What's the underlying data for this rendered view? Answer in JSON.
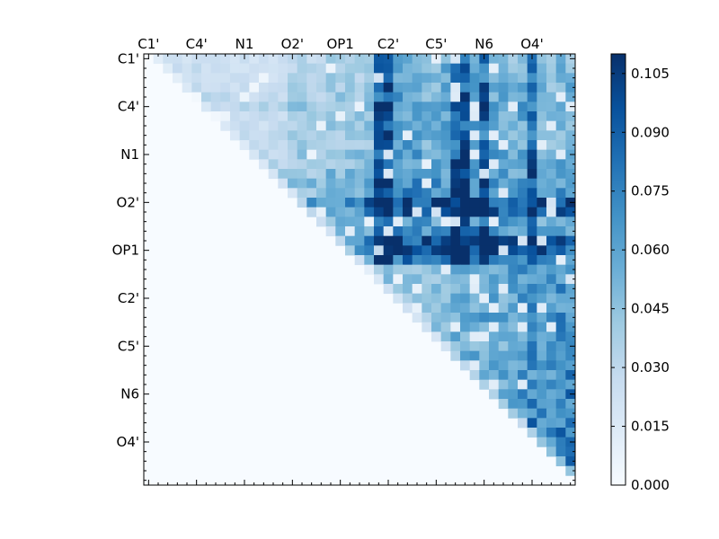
{
  "chart_data": {
    "type": "heatmap",
    "title": "",
    "xlabel": "",
    "ylabel": "",
    "colormap": "Blues",
    "color_min": "#f7fbff",
    "color_max": "#08306b",
    "n": 45,
    "x_tick_labels": [
      "C1'",
      "C4'",
      "N1",
      "O2'",
      "OP1",
      "C2'",
      "C5'",
      "N6",
      "O4'"
    ],
    "y_tick_labels": [
      "C1'",
      "C4'",
      "N1",
      "O2'",
      "OP1",
      "C2'",
      "C5'",
      "N6",
      "O4'"
    ],
    "tick_indices": [
      0,
      5,
      10,
      15,
      20,
      25,
      30,
      35,
      40
    ],
    "vmin": 0.0,
    "vmax": 0.11,
    "colorbar_ticks": [
      "0.000",
      "0.015",
      "0.030",
      "0.045",
      "0.060",
      "0.075",
      "0.090",
      "0.105"
    ],
    "colorbar_tick_values": [
      0.0,
      0.015,
      0.03,
      0.045,
      0.06,
      0.075,
      0.09,
      0.105
    ],
    "upper_triangle_only": true,
    "hot_columns": [
      24,
      25,
      32,
      33,
      35,
      40
    ],
    "hot_rows": [
      15,
      16,
      19,
      20
    ],
    "row_profile": [
      0.02,
      0.025,
      0.025,
      0.03,
      0.035,
      0.04,
      0.035,
      0.03,
      0.03,
      0.035,
      0.04,
      0.04,
      0.05,
      0.06,
      0.055,
      0.09,
      0.075,
      0.05,
      0.055,
      0.08,
      0.085,
      0.07,
      0.02,
      0.02,
      0.02,
      0.015,
      0.015,
      0.015,
      0.015,
      0.015,
      0.015,
      0.02,
      0.02,
      0.02,
      0.025,
      0.03,
      0.03,
      0.035,
      0.04,
      0.045,
      0.05,
      0.05,
      0.05,
      0.045,
      0.0
    ],
    "col_profile": [
      0.0,
      0.02,
      0.02,
      0.02,
      0.02,
      0.02,
      0.02,
      0.02,
      0.02,
      0.02,
      0.02,
      0.02,
      0.02,
      0.02,
      0.02,
      0.035,
      0.035,
      0.03,
      0.03,
      0.04,
      0.04,
      0.04,
      0.04,
      0.045,
      0.085,
      0.09,
      0.075,
      0.07,
      0.065,
      0.06,
      0.06,
      0.065,
      0.08,
      0.085,
      0.07,
      0.08,
      0.065,
      0.06,
      0.06,
      0.065,
      0.075,
      0.055,
      0.055,
      0.06,
      0.06
    ]
  }
}
